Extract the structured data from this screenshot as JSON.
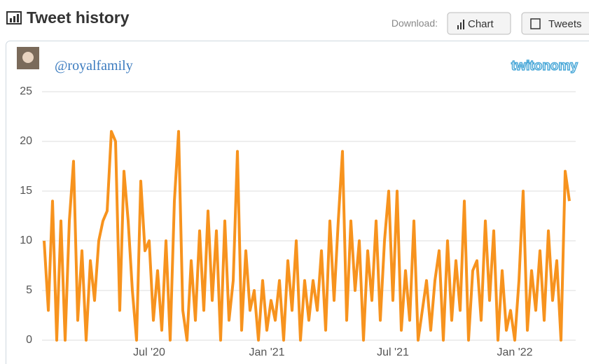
{
  "header": {
    "title": "Tweet history",
    "download_label": "Download:",
    "buttons": [
      "Chart",
      "Tweets"
    ]
  },
  "profile": {
    "handle": "@royalfamily",
    "logo": "twitonomy"
  },
  "chart_data": {
    "type": "line",
    "categories": [
      null,
      null,
      null,
      null,
      null,
      null,
      null,
      null,
      null,
      null,
      null,
      null,
      null,
      null,
      null,
      null,
      null,
      null,
      null,
      null,
      null,
      null,
      null,
      null,
      null,
      "Jul '20",
      null,
      null,
      null,
      null,
      null,
      null,
      null,
      null,
      null,
      null,
      null,
      null,
      null,
      null,
      null,
      null,
      null,
      null,
      null,
      null,
      null,
      null,
      null,
      null,
      null,
      null,
      null,
      "Jan '21",
      null,
      null,
      null,
      null,
      null,
      null,
      null,
      null,
      null,
      null,
      null,
      null,
      null,
      null,
      null,
      null,
      null,
      null,
      null,
      null,
      null,
      null,
      null,
      null,
      null,
      null,
      null,
      null,
      null,
      "Jul '21",
      null,
      null,
      null,
      null,
      null,
      null,
      null,
      null,
      null,
      null,
      null,
      null,
      null,
      null,
      null,
      null,
      null,
      null,
      null,
      null,
      null,
      null,
      null,
      null,
      null,
      null,
      null,
      null,
      "Jan '22",
      null,
      null,
      null,
      null,
      null,
      null,
      null,
      null,
      null,
      null,
      null,
      null,
      null
    ],
    "values": [
      10,
      3,
      14,
      0,
      12,
      0,
      12,
      18,
      2,
      9,
      0,
      8,
      4,
      10,
      12,
      13,
      21,
      20,
      3,
      17,
      12,
      5,
      0,
      16,
      9,
      10,
      2,
      7,
      1,
      10,
      0,
      14,
      21,
      3,
      0,
      8,
      2,
      11,
      3,
      13,
      4,
      11,
      0,
      12,
      2,
      6,
      19,
      1,
      9,
      3,
      5,
      0,
      6,
      1,
      4,
      2,
      6,
      0,
      8,
      3,
      10,
      0,
      6,
      2,
      6,
      3,
      9,
      1,
      12,
      4,
      12,
      19,
      2,
      12,
      5,
      10,
      0,
      9,
      4,
      12,
      2,
      10,
      15,
      4,
      15,
      1,
      7,
      2,
      12,
      0,
      3,
      6,
      1,
      6,
      9,
      0,
      10,
      2,
      8,
      3,
      14,
      0,
      7,
      8,
      2,
      12,
      4,
      11,
      0,
      7,
      1,
      3,
      0,
      6,
      15,
      1,
      7,
      3,
      9,
      2,
      11,
      4,
      8,
      0,
      17,
      14
    ],
    "color": "#f7931e",
    "ylim": [
      0,
      25
    ],
    "yticks": [
      0,
      5,
      10,
      15,
      20,
      25
    ],
    "grid": true
  }
}
